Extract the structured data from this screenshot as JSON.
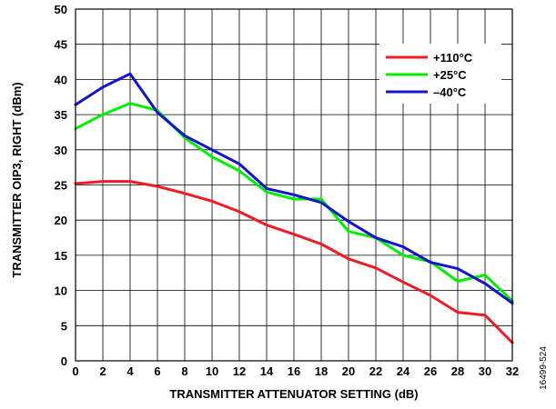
{
  "chart_data": {
    "type": "line",
    "xlabel": "TRANSMITTER ATTENUATOR SETTING (dB)",
    "ylabel": "TRANSMITTER OIP3, RIGHT (dBm)",
    "xlim": [
      0,
      32
    ],
    "ylim": [
      0,
      50
    ],
    "x_ticks": [
      "0",
      "2",
      "4",
      "6",
      "8",
      "10",
      "12",
      "14",
      "16",
      "18",
      "20",
      "22",
      "24",
      "26",
      "28",
      "30",
      "32"
    ],
    "y_ticks": [
      "0",
      "5",
      "10",
      "15",
      "20",
      "25",
      "30",
      "35",
      "40",
      "45",
      "50"
    ],
    "grid": true,
    "legend_position": "top-right",
    "x": [
      0,
      2,
      4,
      6,
      8,
      10,
      12,
      14,
      16,
      18,
      20,
      22,
      24,
      26,
      28,
      30,
      32
    ],
    "series": [
      {
        "name": "+110°C",
        "color": "#ee1c24",
        "values": [
          25.2,
          25.5,
          25.5,
          24.8,
          23.8,
          22.7,
          21.2,
          19.3,
          18.0,
          16.6,
          14.5,
          13.2,
          11.2,
          9.3,
          6.9,
          6.5,
          2.6
        ]
      },
      {
        "name": "+25°C",
        "color": "#00ee00",
        "values": [
          33.0,
          35.0,
          36.6,
          35.6,
          31.7,
          29.0,
          27.0,
          24.0,
          23.0,
          23.0,
          18.4,
          17.5,
          15.0,
          14.1,
          11.3,
          12.2,
          8.5
        ]
      },
      {
        "name": "–40°C",
        "color": "#1414c8",
        "values": [
          36.4,
          38.9,
          40.8,
          35.3,
          32.0,
          30.0,
          28.0,
          24.5,
          23.6,
          22.5,
          19.8,
          17.5,
          16.2,
          14.0,
          13.1,
          11.0,
          8.2
        ]
      }
    ]
  },
  "figure_id": "16499-524"
}
